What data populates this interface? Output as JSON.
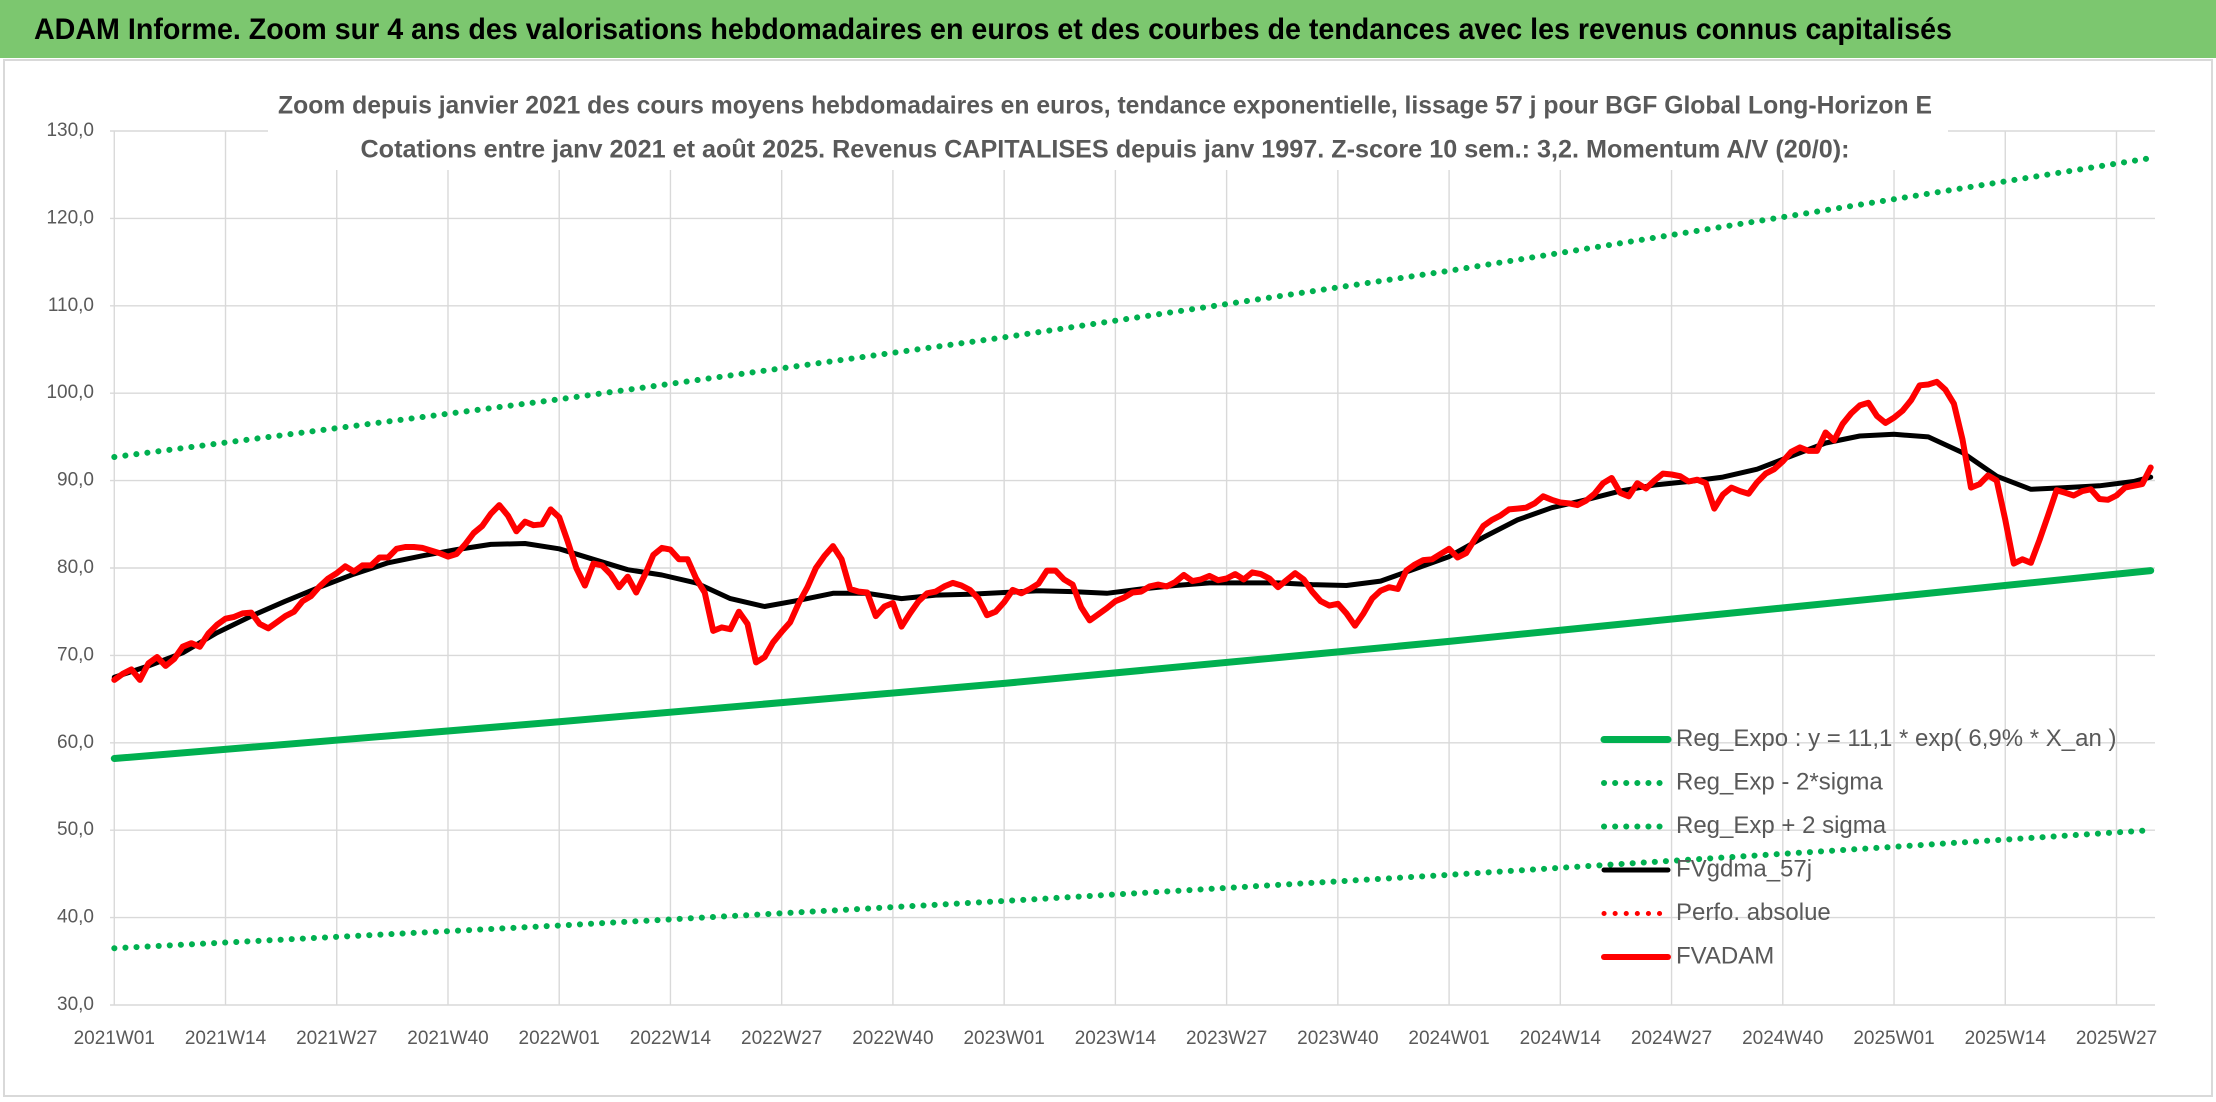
{
  "header": {
    "title": "ADAM Informe. Zoom sur 4 ans des valorisations hebdomadaires en euros et des courbes de tendances avec les revenus connus capitalisés"
  },
  "chart_data": {
    "type": "line",
    "title": "Zoom depuis janvier 2021 des cours moyens hebdomadaires en euros, tendance exponentielle, lissage 57 j pour BGF Global Long-Horizon E",
    "subtitle": "Cotations entre janv 2021 et août 2025. Revenus CAPITALISES depuis janv 1997. Z-score 10 sem.: 3,2. Momentum A/V (20/0):",
    "x": [
      0,
      1,
      2,
      3,
      4,
      5,
      6,
      7,
      8,
      9,
      10,
      11,
      12,
      13,
      14,
      15,
      16,
      17,
      18,
      19,
      20,
      21,
      22,
      23,
      24,
      25,
      26,
      27,
      28,
      29,
      30,
      31,
      32,
      33,
      34,
      35,
      36,
      37,
      38,
      39,
      40,
      41,
      42,
      43,
      44,
      45,
      46,
      47,
      48,
      49,
      50,
      51,
      52,
      53,
      54,
      55,
      56,
      57,
      58,
      59,
      60,
      61,
      62,
      63,
      64,
      65,
      66,
      67,
      68,
      69,
      70,
      71,
      72,
      73,
      74,
      75,
      76,
      77,
      78,
      79,
      80,
      81,
      82,
      83,
      84,
      85,
      86,
      87,
      88,
      89,
      90,
      91,
      92,
      93,
      94,
      95,
      96,
      97,
      98,
      99,
      100,
      101,
      102,
      103,
      104,
      105,
      106,
      107,
      108,
      109,
      110,
      111,
      112,
      113,
      114,
      115,
      116,
      117,
      118,
      119,
      120,
      121,
      122,
      123,
      124,
      125,
      126,
      127,
      128,
      129,
      130,
      131,
      132,
      133,
      134,
      135,
      136,
      137,
      138,
      139,
      140,
      141,
      142,
      143,
      144,
      145,
      146,
      147,
      148,
      149,
      150,
      151,
      152,
      153,
      154,
      155,
      156,
      157,
      158,
      159,
      160,
      161,
      162,
      163,
      164,
      165,
      166,
      167,
      168,
      169,
      170,
      171,
      172,
      173,
      174,
      175,
      176,
      177,
      178,
      179,
      180,
      181,
      182,
      183,
      184,
      185,
      186,
      187,
      188,
      189,
      190,
      191,
      192,
      193,
      194,
      195,
      196,
      197,
      198,
      199,
      200,
      201,
      202,
      203,
      204,
      205,
      206,
      207,
      208,
      209,
      210,
      211,
      212,
      213,
      214,
      215,
      216,
      217,
      218,
      219,
      220,
      221,
      222,
      223,
      224,
      225,
      226,
      227,
      228,
      229,
      230,
      231,
      232,
      233,
      234,
      235,
      236,
      237,
      238
    ],
    "xlim": [
      -0.5,
      238.5
    ],
    "xticks": [
      {
        "value": 0,
        "label": "2021W01"
      },
      {
        "value": 13,
        "label": "2021W14"
      },
      {
        "value": 26,
        "label": "2021W27"
      },
      {
        "value": 39,
        "label": "2021W40"
      },
      {
        "value": 52,
        "label": "2022W01"
      },
      {
        "value": 65,
        "label": "2022W14"
      },
      {
        "value": 78,
        "label": "2022W27"
      },
      {
        "value": 91,
        "label": "2022W40"
      },
      {
        "value": 104,
        "label": "2023W01"
      },
      {
        "value": 117,
        "label": "2023W14"
      },
      {
        "value": 130,
        "label": "2023W27"
      },
      {
        "value": 143,
        "label": "2023W40"
      },
      {
        "value": 156,
        "label": "2024W01"
      },
      {
        "value": 169,
        "label": "2024W14"
      },
      {
        "value": 182,
        "label": "2024W27"
      },
      {
        "value": 195,
        "label": "2024W40"
      },
      {
        "value": 208,
        "label": "2025W01"
      },
      {
        "value": 221,
        "label": "2025W14"
      },
      {
        "value": 234,
        "label": "2025W27"
      }
    ],
    "ylim": [
      30,
      130
    ],
    "yticks": [
      {
        "value": 30,
        "label": "30,0"
      },
      {
        "value": 40,
        "label": "40,0"
      },
      {
        "value": 50,
        "label": "50,0"
      },
      {
        "value": 60,
        "label": "60,0"
      },
      {
        "value": 70,
        "label": "70,0"
      },
      {
        "value": 80,
        "label": "80,0"
      },
      {
        "value": 90,
        "label": "90,0"
      },
      {
        "value": 100,
        "label": "100,0"
      },
      {
        "value": 110,
        "label": "110,0"
      },
      {
        "value": 120,
        "label": "120,0"
      },
      {
        "value": 130,
        "label": "130,0"
      }
    ],
    "grid": true,
    "legend": "lower right",
    "series": [
      {
        "name": "Reg_Expo : y = 11,1 * exp( 6,9% *  X_an )",
        "color": "#00b050",
        "style": "solid",
        "x": [
          0,
          52,
          104,
          156,
          208,
          238
        ],
        "values": [
          58.2,
          62.4,
          66.8,
          71.6,
          76.7,
          79.7
        ]
      },
      {
        "name": "Reg_Exp - 2*sigma",
        "color": "#00b050",
        "style": "dotted",
        "x": [
          0,
          52,
          104,
          156,
          208,
          238
        ],
        "values": [
          36.5,
          39.1,
          41.9,
          44.9,
          48.1,
          50.0
        ]
      },
      {
        "name": "Reg_Exp + 2 sigma",
        "color": "#00b050",
        "style": "dotted",
        "x": [
          0,
          52,
          104,
          156,
          208,
          238
        ],
        "values": [
          92.7,
          99.3,
          106.4,
          114.0,
          122.2,
          126.9
        ]
      },
      {
        "name": "FVgdma_57j",
        "color": "#000000",
        "style": "solid",
        "x": [
          0,
          4,
          8,
          12,
          16,
          20,
          24,
          28,
          32,
          36,
          40,
          44,
          48,
          52,
          56,
          60,
          64,
          68,
          72,
          76,
          80,
          84,
          88,
          92,
          96,
          100,
          104,
          108,
          112,
          116,
          120,
          124,
          128,
          132,
          136,
          140,
          144,
          148,
          152,
          156,
          160,
          164,
          168,
          172,
          176,
          180,
          184,
          188,
          192,
          196,
          200,
          204,
          208,
          212,
          216,
          220,
          224,
          228,
          232,
          236,
          238
        ],
        "values": [
          67.5,
          68.8,
          70.3,
          72.6,
          74.5,
          76.2,
          77.8,
          79.3,
          80.6,
          81.4,
          82.1,
          82.7,
          82.8,
          82.2,
          81,
          79.8,
          79.2,
          78.3,
          76.5,
          75.6,
          76.3,
          77.1,
          77.1,
          76.5,
          76.9,
          77,
          77.2,
          77.4,
          77.3,
          77.1,
          77.6,
          78,
          78.3,
          78.3,
          78.3,
          78.1,
          78,
          78.5,
          79.9,
          81.3,
          83.5,
          85.5,
          86.9,
          87.8,
          88.8,
          89.5,
          89.9,
          90.4,
          91.3,
          92.8,
          94.3,
          95.1,
          95.3,
          95,
          93.2,
          90.5,
          89,
          89.2,
          89.4,
          89.9,
          90.4
        ]
      },
      {
        "name": "Perfo. absolue",
        "color": "#ff0000",
        "style": "dotted",
        "x": [],
        "values": []
      },
      {
        "name": "FVADAM",
        "color": "#ff0000",
        "style": "solid",
        "values": [
          67.2,
          67.9,
          68.4,
          67.2,
          69.1,
          69.8,
          68.8,
          69.6,
          71,
          71.4,
          71,
          72.5,
          73.5,
          74.2,
          74.4,
          74.8,
          74.9,
          73.6,
          73.1,
          73.8,
          74.5,
          75,
          76.2,
          76.8,
          77.9,
          78.8,
          79.4,
          80.2,
          79.6,
          80.3,
          80.3,
          81.2,
          81.2,
          82.2,
          82.4,
          82.4,
          82.3,
          82,
          81.7,
          81.3,
          81.6,
          82.7,
          84,
          84.8,
          86.2,
          87.2,
          86,
          84.2,
          85.3,
          84.9,
          85,
          86.7,
          85.8,
          83,
          80,
          78,
          80.5,
          80.3,
          79.3,
          77.8,
          79,
          77.2,
          79.2,
          81.5,
          82.3,
          82.1,
          81,
          81,
          78.8,
          77.2,
          72.8,
          73.2,
          73,
          75,
          73.6,
          69.2,
          69.8,
          71.5,
          72.7,
          73.8,
          76,
          77.8,
          80,
          81.4,
          82.5,
          81,
          77.6,
          77.3,
          77.2,
          74.5,
          75.6,
          76,
          73.3,
          74.8,
          76.2,
          77.1,
          77.3,
          77.9,
          78.3,
          78,
          77.5,
          76.5,
          74.6,
          75,
          76.1,
          77.5,
          77.1,
          77.6,
          78.2,
          79.7,
          79.7,
          78.7,
          78.1,
          75.5,
          74,
          74.7,
          75.4,
          76.2,
          76.6,
          77.2,
          77.3,
          77.9,
          78.1,
          77.9,
          78.4,
          79.2,
          78.5,
          78.7,
          79.1,
          78.6,
          78.8,
          79.3,
          78.7,
          79.5,
          79.3,
          78.8,
          77.8,
          78.6,
          79.4,
          78.7,
          77.3,
          76.2,
          75.7,
          75.9,
          74.8,
          73.4,
          74.8,
          76.5,
          77.4,
          77.8,
          77.6,
          79.7,
          80.4,
          80.9,
          81,
          81.6,
          82.2,
          81.2,
          81.7,
          83.3,
          84.8,
          85.5,
          86,
          86.7,
          86.8,
          86.9,
          87.4,
          88.2,
          87.8,
          87.5,
          87.4,
          87.2,
          87.7,
          88.5,
          89.7,
          90.3,
          88.6,
          88.2,
          89.7,
          89.1,
          90,
          90.8,
          90.7,
          90.5,
          89.9,
          90.1,
          89.7,
          86.8,
          88.4,
          89.2,
          88.8,
          88.5,
          89.8,
          90.8,
          91.3,
          92.2,
          93.3,
          93.8,
          93.4,
          93.4,
          95.5,
          94.6,
          96.5,
          97.7,
          98.6,
          98.9,
          97.4,
          96.6,
          97.2,
          98,
          99.2,
          100.9,
          101,
          101.3,
          100.4,
          98.8,
          94.7,
          89.2,
          89.6,
          90.6,
          90,
          85.5,
          80.5,
          81,
          80.6,
          83.2,
          86,
          88.9,
          88.6,
          88.3,
          88.8,
          89,
          87.9,
          87.8,
          88.3,
          89.2,
          89.4,
          89.6,
          91.5
        ]
      }
    ]
  }
}
